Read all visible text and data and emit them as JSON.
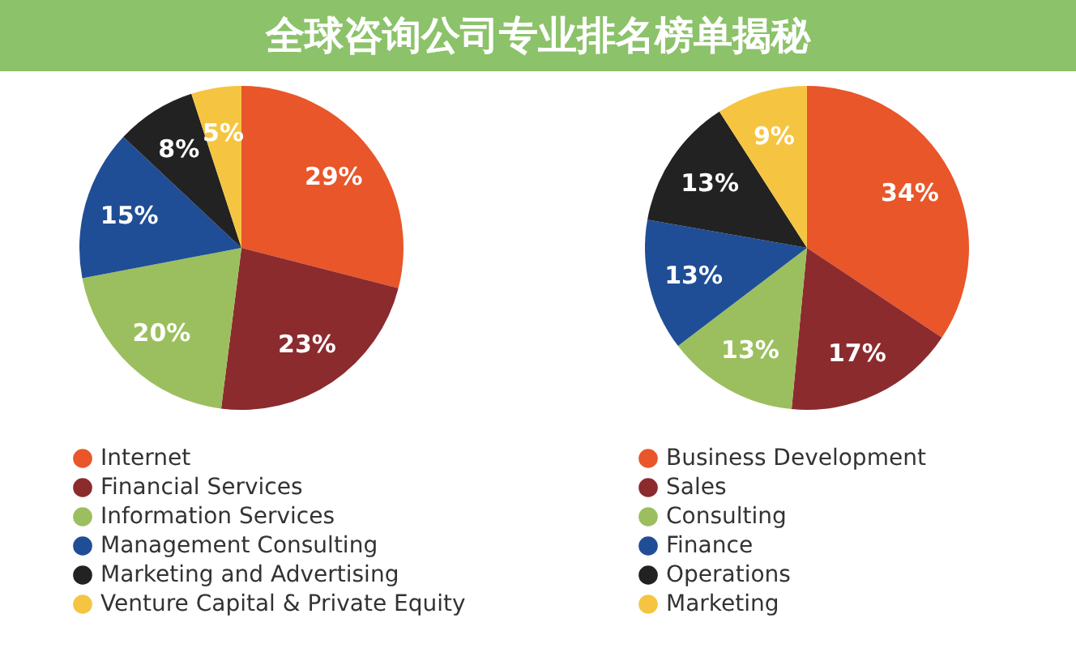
{
  "chart_data": [
    {
      "type": "pie",
      "title": "全球咨询公司专业排名榜单揭秘",
      "categories": [
        "Internet",
        "Financial Services",
        "Information Services",
        "Management Consulting",
        "Marketing and Advertising",
        "Venture Capital & Private Equity"
      ],
      "values": [
        29,
        23,
        20,
        15,
        8,
        5
      ],
      "value_labels": [
        "29%",
        "23%",
        "20%",
        "15%",
        "8%",
        "5%"
      ],
      "colors": [
        "#e8562a",
        "#8b2b2e",
        "#9bbf5e",
        "#1f4e96",
        "#222222",
        "#f5c542"
      ],
      "legend": "bottom"
    },
    {
      "type": "pie",
      "categories": [
        "Business Development",
        "Sales",
        "Consulting",
        "Finance",
        "Operations",
        "Marketing"
      ],
      "values": [
        34,
        17,
        13,
        13,
        13,
        9
      ],
      "value_labels": [
        "34%",
        "17%",
        "13%",
        "13%",
        "13%",
        "9%"
      ],
      "colors": [
        "#e8562a",
        "#8b2b2e",
        "#9bbf5e",
        "#1f4e96",
        "#222222",
        "#f5c542"
      ],
      "legend": "bottom"
    }
  ]
}
